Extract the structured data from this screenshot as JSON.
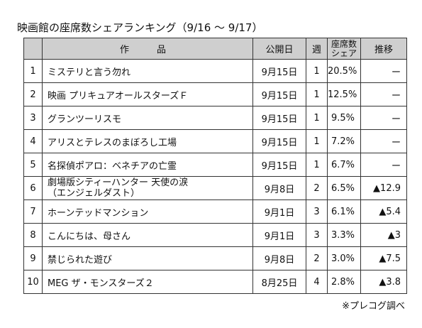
{
  "title": "映画館の座席数シェアランキング（9/16 ～ 9/17）",
  "headers": {
    "title": "作品",
    "date": "公開日",
    "week": "週",
    "share_line1": "座席数",
    "share_line2": "シェア",
    "trend": "推移"
  },
  "rows": [
    {
      "rank": "1",
      "title": "ミステリと言う勿れ",
      "date": "9月15日",
      "week": "1",
      "share": "20.5%",
      "trend": "ー"
    },
    {
      "rank": "2",
      "title": "映画 プリキュアオールスターズＦ",
      "date": "9月15日",
      "week": "1",
      "share": "12.5%",
      "trend": "ー"
    },
    {
      "rank": "3",
      "title": "グランツーリスモ",
      "date": "9月15日",
      "week": "1",
      "share": "9.5%",
      "trend": "ー"
    },
    {
      "rank": "4",
      "title": "アリスとテレスのまぼろし工場",
      "date": "9月15日",
      "week": "1",
      "share": "7.2%",
      "trend": "ー"
    },
    {
      "rank": "5",
      "title": "名探偵ポアロ：ベネチアの亡霊",
      "date": "9月15日",
      "week": "1",
      "share": "6.7%",
      "trend": "ー"
    },
    {
      "rank": "6",
      "title": "劇場版シティーハンター 天使の涙",
      "title_line2": "（エンジェルダスト）",
      "date": "9月8日",
      "week": "2",
      "share": "6.5%",
      "trend": "▲12.9"
    },
    {
      "rank": "7",
      "title": "ホーンテッドマンション",
      "date": "9月1日",
      "week": "3",
      "share": "6.1%",
      "trend": "▲5.4"
    },
    {
      "rank": "8",
      "title": "こんにちは、母さん",
      "date": "9月1日",
      "week": "3",
      "share": "3.3%",
      "trend": "▲3"
    },
    {
      "rank": "9",
      "title": "禁じられた遊び",
      "date": "9月8日",
      "week": "2",
      "share": "3.0%",
      "trend": "▲7.5"
    },
    {
      "rank": "10",
      "title": "MEG ザ・モンスターズ２",
      "date": "8月25日",
      "week": "4",
      "share": "2.8%",
      "trend": "▲3.8"
    }
  ],
  "note": "※プレコグ調べ"
}
